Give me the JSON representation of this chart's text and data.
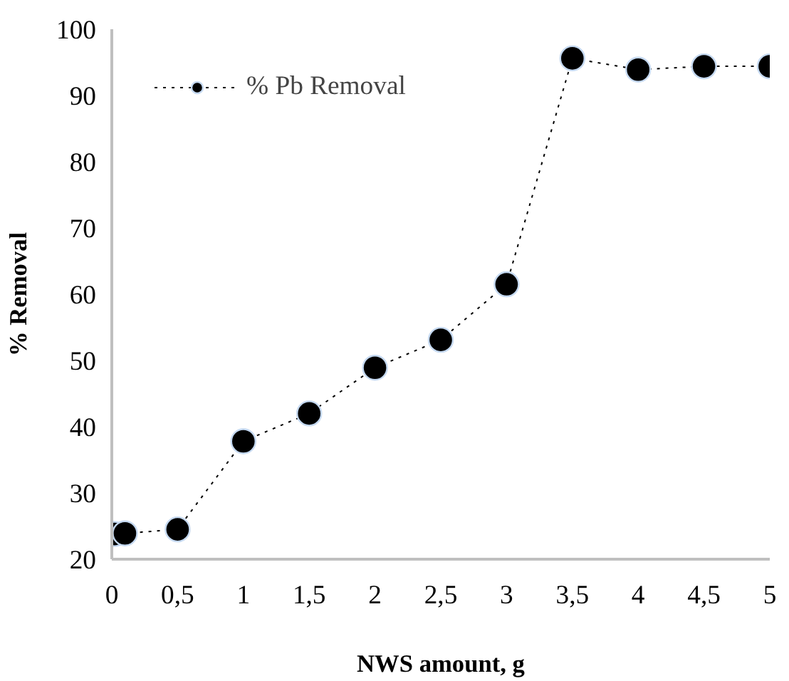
{
  "chart_data": {
    "type": "line",
    "xlabel": "NWS amount, g",
    "ylabel": "% Removal",
    "x": [
      0.02,
      0.1,
      0.5,
      1,
      1.5,
      2,
      2.5,
      3,
      3.5,
      4,
      4.5,
      5
    ],
    "series": [
      {
        "name": "% Pb Removal",
        "color": "#000000",
        "values": [
          23.8,
          23.9,
          24.5,
          37.8,
          42.0,
          48.9,
          53.1,
          61.5,
          95.6,
          93.9,
          94.4,
          94.4
        ]
      }
    ],
    "xlim": [
      0,
      5
    ],
    "ylim": [
      20,
      100
    ],
    "xticks": [
      0,
      {
        "value": 0.5,
        "label": "0,5"
      },
      1,
      {
        "value": 1.5,
        "label": "1,5"
      },
      2,
      {
        "value": 2.5,
        "label": "2,5"
      },
      3,
      {
        "value": 3.5,
        "label": "3,5"
      },
      4,
      {
        "value": 4.5,
        "label": "4,5"
      },
      5
    ],
    "yticks": [
      20,
      30,
      40,
      50,
      60,
      70,
      80,
      90,
      100
    ],
    "grid": false,
    "legend": "top left",
    "marker": "circle",
    "line_style": "dotted"
  }
}
